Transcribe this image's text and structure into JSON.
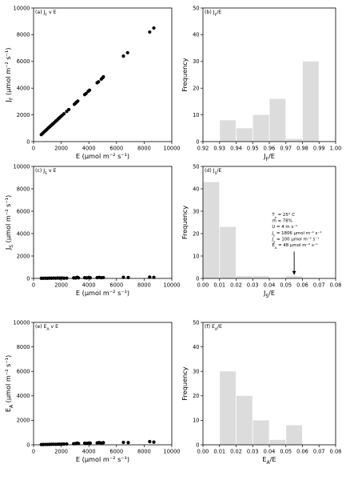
{
  "chart_data": [
    {
      "id": "a",
      "type": "scatter",
      "title": "(a) J_F v E",
      "title_parts": {
        "main": "(a) J",
        "sub": "F",
        "tail": " v E"
      },
      "xlabel": "E (μmol m⁻² s⁻¹)",
      "ylabel": "J_F (μmol m⁻² s⁻¹)",
      "xlim": [
        0,
        10000
      ],
      "ylim": [
        0,
        10000
      ],
      "xticks": [
        0,
        2000,
        4000,
        6000,
        8000,
        10000
      ],
      "yticks": [
        0,
        2000,
        4000,
        6000,
        8000,
        10000
      ],
      "points": [
        [
          560,
          520
        ],
        [
          640,
          600
        ],
        [
          720,
          680
        ],
        [
          800,
          760
        ],
        [
          880,
          830
        ],
        [
          950,
          900
        ],
        [
          1020,
          970
        ],
        [
          1100,
          1050
        ],
        [
          1180,
          1120
        ],
        [
          1250,
          1190
        ],
        [
          1330,
          1260
        ],
        [
          1400,
          1330
        ],
        [
          1480,
          1400
        ],
        [
          1550,
          1470
        ],
        [
          1620,
          1540
        ],
        [
          1700,
          1610
        ],
        [
          1780,
          1690
        ],
        [
          1850,
          1760
        ],
        [
          1920,
          1830
        ],
        [
          2000,
          1900
        ],
        [
          2080,
          1980
        ],
        [
          2200,
          2080
        ],
        [
          2400,
          2260
        ],
        [
          2550,
          2400
        ],
        [
          2950,
          2790
        ],
        [
          3050,
          2890
        ],
        [
          3100,
          2940
        ],
        [
          3200,
          3030
        ],
        [
          3700,
          3520
        ],
        [
          3800,
          3600
        ],
        [
          3950,
          3760
        ],
        [
          4050,
          3850
        ],
        [
          4600,
          4400
        ],
        [
          4700,
          4480
        ],
        [
          4900,
          4680
        ],
        [
          5000,
          4780
        ],
        [
          5050,
          4850
        ],
        [
          6500,
          6400
        ],
        [
          6800,
          6650
        ],
        [
          8400,
          8200
        ],
        [
          8700,
          8500
        ]
      ]
    },
    {
      "id": "b",
      "type": "bar",
      "title": "(b) J_F/E",
      "title_parts": {
        "main": "(b) J",
        "sub": "F",
        "tail": "/E"
      },
      "xlabel": "J_F/E",
      "ylabel": "Frequency",
      "xlim": [
        0.92,
        1.0
      ],
      "ylim": [
        0,
        50
      ],
      "xticks": [
        0.92,
        0.93,
        0.94,
        0.95,
        0.96,
        0.97,
        0.98,
        0.99,
        1.0
      ],
      "xtick_labels": [
        "0.92",
        "0.93",
        "0.94",
        "0.95",
        "0.96",
        "0.97",
        "0.98",
        "0.99",
        "1.00"
      ],
      "yticks": [
        0,
        10,
        20,
        30,
        40,
        50
      ],
      "bins": [
        [
          0.93,
          0.94,
          8
        ],
        [
          0.94,
          0.95,
          5
        ],
        [
          0.95,
          0.96,
          10
        ],
        [
          0.96,
          0.97,
          16
        ],
        [
          0.97,
          0.98,
          1
        ],
        [
          0.98,
          0.99,
          30
        ]
      ]
    },
    {
      "id": "c",
      "type": "scatter",
      "title": "(c) J_S v E",
      "title_parts": {
        "main": "(c) J",
        "sub": "S",
        "tail": " v E"
      },
      "xlabel": "E (μmol m⁻² s⁻¹)",
      "ylabel": "J_S (μmol m⁻² s⁻¹)",
      "xlim": [
        0,
        10000
      ],
      "ylim": [
        0,
        10000
      ],
      "xticks": [
        0,
        2000,
        4000,
        6000,
        8000,
        10000
      ],
      "yticks": [
        0,
        2000,
        4000,
        6000,
        8000,
        10000
      ],
      "points": [
        [
          560,
          10
        ],
        [
          700,
          15
        ],
        [
          850,
          20
        ],
        [
          1000,
          12
        ],
        [
          1150,
          25
        ],
        [
          1300,
          18
        ],
        [
          1450,
          30
        ],
        [
          1600,
          22
        ],
        [
          1750,
          35
        ],
        [
          1900,
          28
        ],
        [
          2050,
          40
        ],
        [
          2200,
          20
        ],
        [
          2400,
          30
        ],
        [
          2900,
          45
        ],
        [
          3050,
          35
        ],
        [
          3150,
          100
        ],
        [
          3250,
          50
        ],
        [
          3700,
          60
        ],
        [
          3850,
          45
        ],
        [
          4000,
          80
        ],
        [
          4100,
          55
        ],
        [
          4600,
          70
        ],
        [
          4750,
          90
        ],
        [
          4900,
          60
        ],
        [
          5050,
          75
        ],
        [
          6500,
          100
        ],
        [
          6850,
          80
        ],
        [
          8400,
          120
        ],
        [
          8700,
          95
        ]
      ]
    },
    {
      "id": "d",
      "type": "bar",
      "title": "(d) J_S/E",
      "title_parts": {
        "main": "(d) J",
        "sub": "S",
        "tail": "/E"
      },
      "xlabel": "J_S/E",
      "ylabel": "Frequency",
      "xlim": [
        0,
        0.08
      ],
      "ylim": [
        0,
        50
      ],
      "xticks": [
        0,
        0.01,
        0.02,
        0.03,
        0.04,
        0.05,
        0.06,
        0.07,
        0.08
      ],
      "xtick_labels": [
        "0.00",
        "0.01",
        "0.02",
        "0.03",
        "0.04",
        "0.05",
        "0.06",
        "0.07",
        "0.08"
      ],
      "yticks": [
        0,
        10,
        20,
        30,
        40,
        50
      ],
      "bins": [
        [
          0.0,
          0.01,
          43
        ],
        [
          0.01,
          0.02,
          23
        ],
        [
          0.02,
          0.03,
          1
        ],
        [
          0.03,
          0.04,
          1
        ],
        [
          0.04,
          0.05,
          0
        ],
        [
          0.05,
          0.06,
          1
        ]
      ],
      "annotation": {
        "lines": [
          {
            "main": "T",
            "sub": "a",
            "tail": " = 25° C"
          },
          {
            "main": "rh",
            "sub": "",
            "tail": " = 78%"
          },
          {
            "main": "U",
            "sub": "",
            "tail": " = 4 m s⁻¹"
          },
          {
            "main": "J",
            "sub": "F",
            "tail": " = 1806 μmol m⁻² s⁻¹"
          },
          {
            "main": "J",
            "sub": "S",
            "tail": " = 100 μmol m⁻² s⁻¹"
          },
          {
            "main": "E",
            "sub": "A",
            "tail": " = 48 μmol m⁻² s⁻¹"
          }
        ],
        "arrow_x": 0.055,
        "arrow_y_from": 12,
        "arrow_y_to": 1.5
      }
    },
    {
      "id": "e",
      "type": "scatter",
      "title": "(e) E_A v E",
      "title_parts": {
        "main": "(e) E",
        "sub": "A",
        "tail": " v E"
      },
      "xlabel": "E (μmol m⁻² s⁻¹)",
      "ylabel": "E_A (μmol m⁻² s⁻¹)",
      "xlim": [
        0,
        10000
      ],
      "ylim": [
        0,
        10000
      ],
      "xticks": [
        0,
        2000,
        4000,
        6000,
        8000,
        10000
      ],
      "yticks": [
        0,
        2000,
        4000,
        6000,
        8000,
        10000
      ],
      "points": [
        [
          560,
          20
        ],
        [
          700,
          25
        ],
        [
          850,
          30
        ],
        [
          1000,
          28
        ],
        [
          1150,
          35
        ],
        [
          1300,
          40
        ],
        [
          1450,
          45
        ],
        [
          1600,
          38
        ],
        [
          1750,
          50
        ],
        [
          1900,
          48
        ],
        [
          2050,
          55
        ],
        [
          2200,
          60
        ],
        [
          2400,
          70
        ],
        [
          2900,
          90
        ],
        [
          3050,
          100
        ],
        [
          3150,
          140
        ],
        [
          3250,
          110
        ],
        [
          3700,
          130
        ],
        [
          3850,
          120
        ],
        [
          4000,
          150
        ],
        [
          4100,
          135
        ],
        [
          4600,
          160
        ],
        [
          4750,
          180
        ],
        [
          4900,
          150
        ],
        [
          5050,
          170
        ],
        [
          6500,
          200
        ],
        [
          6850,
          180
        ],
        [
          8400,
          260
        ],
        [
          8700,
          220
        ]
      ]
    },
    {
      "id": "f",
      "type": "bar",
      "title": "(f) E_A/E",
      "title_parts": {
        "main": "(f) E",
        "sub": "A",
        "tail": "/E"
      },
      "xlabel": "E_A/E",
      "ylabel": "Frequency",
      "xlim": [
        0,
        0.08
      ],
      "ylim": [
        0,
        50
      ],
      "xticks": [
        0,
        0.01,
        0.02,
        0.03,
        0.04,
        0.05,
        0.06,
        0.07,
        0.08
      ],
      "xtick_labels": [
        "0.00",
        "0.01",
        "0.02",
        "0.03",
        "0.04",
        "0.05",
        "0.06",
        "0.07",
        "0.08"
      ],
      "yticks": [
        0,
        10,
        20,
        30,
        40,
        50
      ],
      "bins": [
        [
          0.01,
          0.02,
          30
        ],
        [
          0.02,
          0.03,
          20
        ],
        [
          0.03,
          0.04,
          10
        ],
        [
          0.04,
          0.05,
          2
        ],
        [
          0.05,
          0.06,
          8
        ]
      ]
    }
  ]
}
